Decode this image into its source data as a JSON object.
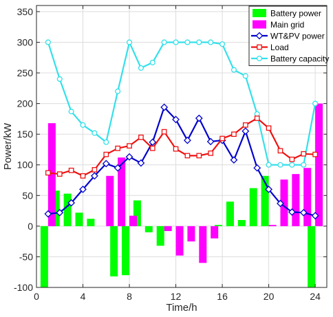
{
  "chart_data": {
    "type": "bar+line",
    "xlabel": "Time/h",
    "ylabel": "Power/kW",
    "xlim": [
      0,
      25
    ],
    "ylim": [
      -100,
      360
    ],
    "xticks": [
      0,
      4,
      8,
      12,
      16,
      20,
      24
    ],
    "yticks": [
      -100,
      -50,
      0,
      50,
      100,
      150,
      200,
      250,
      300,
      350
    ],
    "x": [
      1,
      2,
      3,
      4,
      5,
      6,
      7,
      8,
      9,
      10,
      11,
      12,
      13,
      14,
      15,
      16,
      17,
      18,
      19,
      20,
      21,
      22,
      23,
      24
    ],
    "legend_position": "top-right",
    "bar_series": [
      {
        "name": "Battery power",
        "color": "#00ff00",
        "values": [
          -100,
          58,
          53,
          22,
          12,
          0,
          -82,
          -80,
          42,
          -10,
          -32,
          0,
          0,
          0,
          0,
          2,
          40,
          10,
          62,
          82,
          0,
          0,
          0,
          -100
        ]
      },
      {
        "name": "Main grid",
        "color": "#ff00ff",
        "values": [
          168,
          0,
          0,
          0,
          0,
          82,
          112,
          17,
          0,
          0,
          -8,
          -48,
          -25,
          -60,
          -20,
          0,
          0,
          0,
          0,
          2,
          76,
          85,
          95,
          200
        ]
      }
    ],
    "line_series": [
      {
        "name": "WT&PV  power",
        "color": "#0000cc",
        "marker": "diamond",
        "values": [
          20,
          22,
          38,
          60,
          82,
          102,
          95,
          113,
          103,
          137,
          194,
          174,
          140,
          176,
          138,
          140,
          108,
          155,
          95,
          60,
          37,
          23,
          22,
          17
        ]
      },
      {
        "name": "Load",
        "color": "#ee1111",
        "marker": "square",
        "values": [
          87,
          85,
          91,
          82,
          92,
          117,
          127,
          131,
          145,
          127,
          154,
          126,
          115,
          115,
          119,
          143,
          150,
          165,
          176,
          160,
          123,
          109,
          118,
          117
        ]
      },
      {
        "name": "Battery capacity",
        "color": "#33e0ea",
        "marker": "circle",
        "values": [
          300,
          240,
          187,
          165,
          152,
          137,
          220,
          300,
          258,
          267,
          300,
          300,
          300,
          300,
          300,
          297,
          255,
          245,
          183,
          100,
          100,
          100,
          100,
          200
        ]
      }
    ]
  }
}
